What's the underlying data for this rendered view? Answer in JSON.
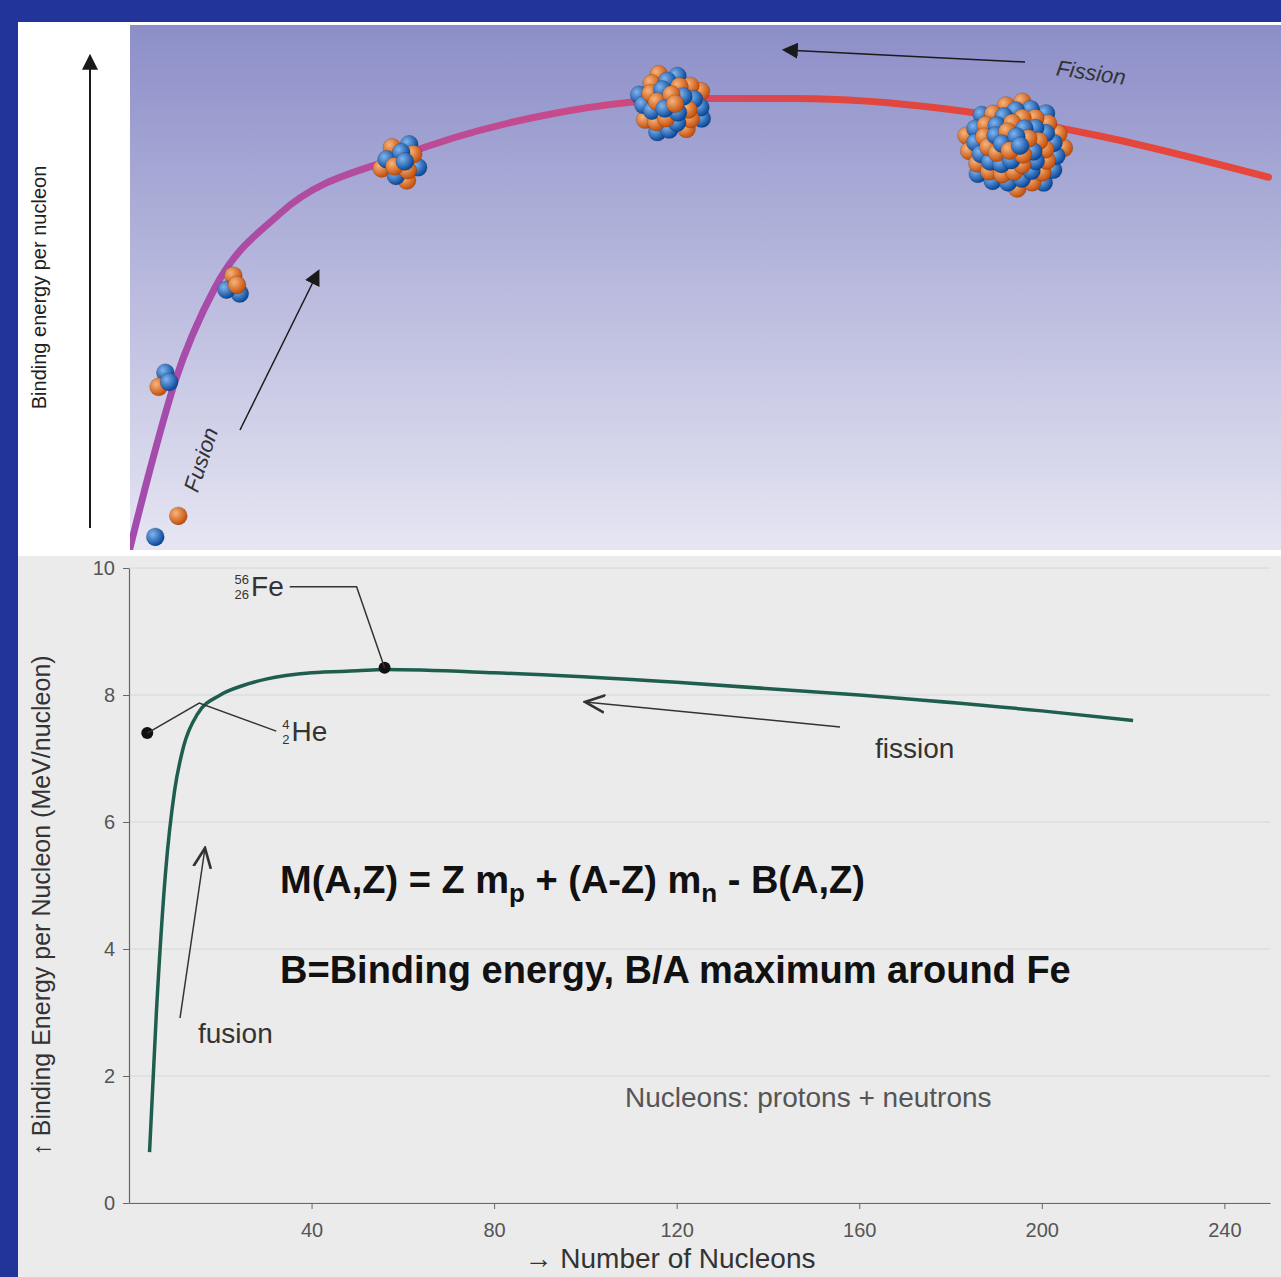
{
  "chart_data": [
    {
      "type": "line",
      "y_label": "Binding energy per nucleon",
      "x": [
        0,
        1.7,
        3.9,
        7.4,
        13,
        23.5,
        36.5,
        49.5,
        58,
        71,
        84,
        99
      ],
      "values": [
        0.4,
        15,
        32,
        50,
        64,
        75,
        83,
        86,
        86,
        84,
        79,
        71
      ],
      "xlim": [
        0,
        100
      ],
      "ylim": [
        0,
        100
      ],
      "tick_labels": false,
      "annotations": [
        {
          "text": "Fusion"
        },
        {
          "text": "Fission"
        }
      ],
      "nuclei": [
        {
          "x": 2.2,
          "y": 2.5,
          "nucleons": 1
        },
        {
          "x": 4.2,
          "y": 6.5,
          "nucleons": 1
        },
        {
          "x": 3,
          "y": 32,
          "nucleons": 3
        },
        {
          "x": 8.9,
          "y": 50.5,
          "nucleons": 4
        },
        {
          "x": 23.5,
          "y": 74,
          "nucleons": 12
        },
        {
          "x": 47,
          "y": 85,
          "nucleons": 30
        },
        {
          "x": 77,
          "y": 77,
          "nucleons": 60
        }
      ]
    },
    {
      "type": "line",
      "x_label": "→ Number of Nucleons",
      "y_label": "↑ Binding Energy per Nucleon (MeV/nucleon)",
      "x": [
        4.5,
        6,
        8,
        10,
        12,
        15,
        20,
        25,
        30,
        40,
        50,
        56,
        80,
        120,
        160,
        200,
        220
      ],
      "values": [
        0.8,
        3.0,
        5.2,
        6.5,
        7.2,
        7.7,
        8.0,
        8.15,
        8.25,
        8.35,
        8.38,
        8.4,
        8.35,
        8.2,
        8.0,
        7.75,
        7.6
      ],
      "color": "#1e5e4e",
      "xlim": [
        0,
        250
      ],
      "ylim": [
        0,
        10
      ],
      "xticks": [
        40,
        80,
        120,
        160,
        200,
        240
      ],
      "yticks": [
        0,
        2,
        4,
        6,
        8,
        10
      ],
      "grid": true,
      "points": [
        {
          "symbol": "He",
          "mass_number": 4,
          "atomic_number": 2,
          "x": 4,
          "y": 7.4
        },
        {
          "symbol": "Fe",
          "mass_number": 56,
          "atomic_number": 26,
          "x": 56,
          "y": 8.43
        }
      ],
      "annotations": [
        {
          "text": "fission"
        },
        {
          "text": "fusion"
        },
        {
          "text": "Nucleons: protons + neutrons"
        }
      ],
      "equation": [
        "M(A,Z) = Z m",
        "p",
        " + (A-Z) m",
        "n",
        " - B(A,Z)"
      ],
      "caption": "B=Binding energy, B/A maximum around Fe"
    }
  ]
}
